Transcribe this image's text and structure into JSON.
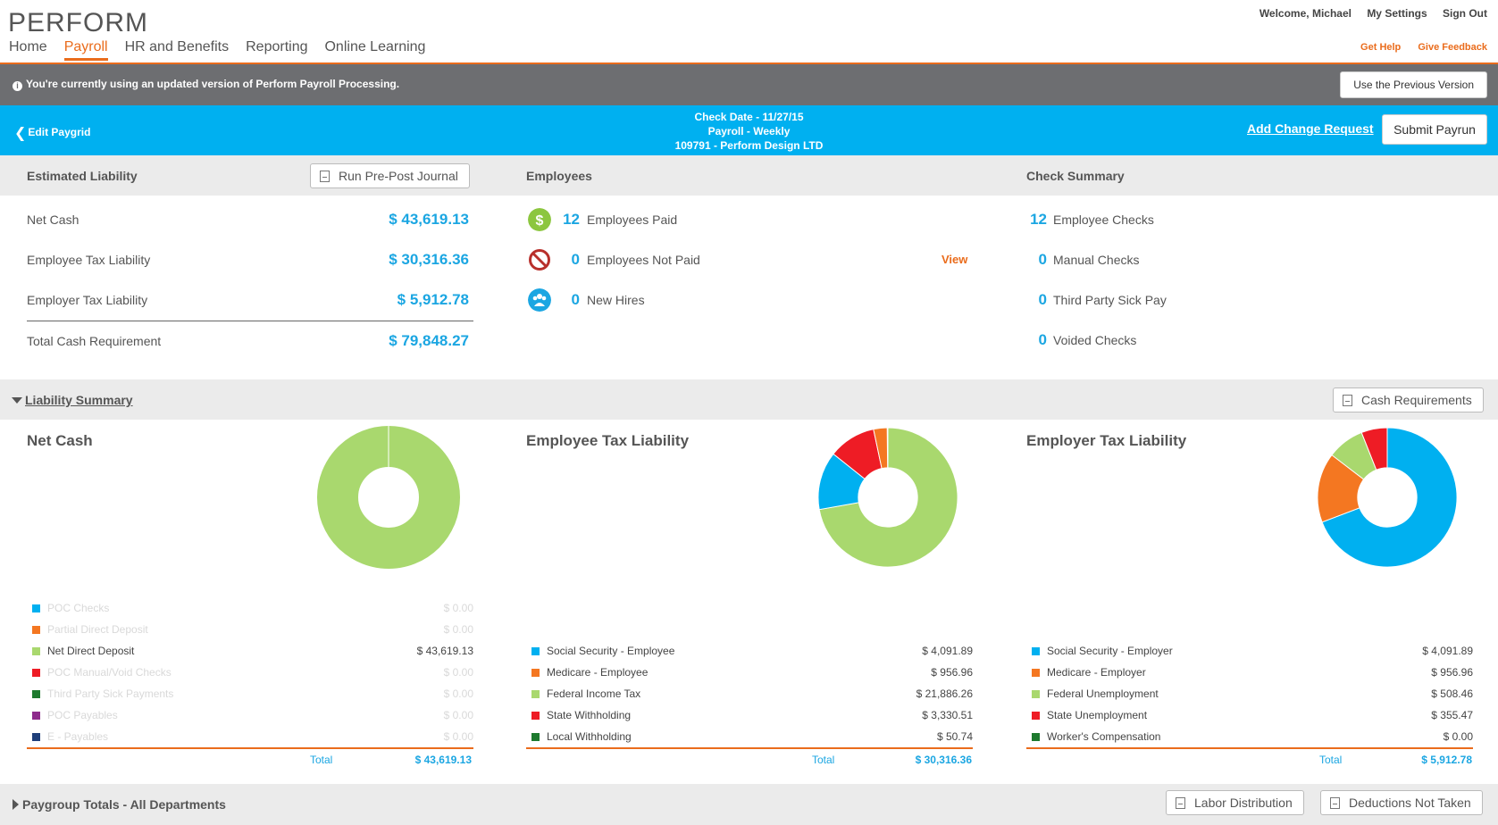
{
  "header": {
    "logo": "PERFORM",
    "welcome": "Welcome, Michael",
    "my_settings": "My Settings",
    "sign_out": "Sign Out",
    "get_help": "Get Help",
    "give_feedback": "Give Feedback",
    "nav": [
      {
        "label": "Home",
        "active": false
      },
      {
        "label": "Payroll",
        "active": true
      },
      {
        "label": "HR and Benefits",
        "active": false
      },
      {
        "label": "Reporting",
        "active": false
      },
      {
        "label": "Online Learning",
        "active": false
      }
    ]
  },
  "notice": {
    "text": "You're currently using an updated version of Perform Payroll Processing.",
    "button": "Use the Previous Version"
  },
  "paygrid_bar": {
    "back_label": "Edit Paygrid",
    "check_date": "Check Date - 11/27/15",
    "payroll": "Payroll - Weekly",
    "company": "109791 - Perform Design LTD",
    "change_request": "Add Change Request",
    "submit": "Submit Payrun"
  },
  "estimated_liability": {
    "title": "Estimated Liability",
    "journal_button": "Run Pre-Post Journal",
    "rows": [
      {
        "label": "Net Cash",
        "value": "$ 43,619.13"
      },
      {
        "label": "Employee Tax Liability",
        "value": "$ 30,316.36"
      },
      {
        "label": "Employer Tax Liability",
        "value": "$ 5,912.78"
      }
    ],
    "total_label": "Total Cash Requirement",
    "total_value": "$ 79,848.27"
  },
  "employees": {
    "title": "Employees",
    "rows": [
      {
        "count": "12",
        "label": "Employees Paid",
        "icon": "dollar-icon"
      },
      {
        "count": "0",
        "label": "Employees Not Paid",
        "icon": "not-allowed-icon"
      },
      {
        "count": "0",
        "label": "New Hires",
        "icon": "people-icon"
      }
    ],
    "view_link": "View"
  },
  "check_summary": {
    "title": "Check Summary",
    "rows": [
      {
        "count": "12",
        "label": "Employee Checks"
      },
      {
        "count": "0",
        "label": "Manual Checks"
      },
      {
        "count": "0",
        "label": "Third Party Sick Pay"
      },
      {
        "count": "0",
        "label": "Voided Checks"
      }
    ]
  },
  "liability_summary": {
    "title": "Liability Summary",
    "cash_button": "Cash Requirements"
  },
  "chart_data": [
    {
      "type": "pie",
      "title": "Net Cash",
      "categories": [
        "POC Checks",
        "Partial Direct Deposit",
        "Net Direct Deposit",
        "POC Manual/Void Checks",
        "Third Party Sick Payments",
        "POC Payables",
        "E - Payables"
      ],
      "values": [
        0,
        0,
        43619.13,
        0,
        0,
        0,
        0
      ],
      "labels": [
        "$ 0.00",
        "$ 0.00",
        "$ 43,619.13",
        "$ 0.00",
        "$ 0.00",
        "$ 0.00",
        "$ 0.00"
      ],
      "colors": [
        "#00b0f0",
        "#f47721",
        "#a9d86e",
        "#ee1c25",
        "#1e7a2e",
        "#8e2b8c",
        "#1f3f7a"
      ],
      "total_label": "Total",
      "total": "$ 43,619.13"
    },
    {
      "type": "pie",
      "title": "Employee Tax Liability",
      "categories": [
        "Social Security - Employee",
        "Medicare - Employee",
        "Federal Income Tax",
        "State Withholding",
        "Local Withholding"
      ],
      "values": [
        4091.89,
        956.96,
        21886.26,
        3330.51,
        50.74
      ],
      "labels": [
        "$ 4,091.89",
        "$ 956.96",
        "$ 21,886.26",
        "$ 3,330.51",
        "$ 50.74"
      ],
      "colors": [
        "#00b0f0",
        "#f47721",
        "#a9d86e",
        "#ee1c25",
        "#1e7a2e"
      ],
      "total_label": "Total",
      "total": "$ 30,316.36"
    },
    {
      "type": "pie",
      "title": "Employer Tax Liability",
      "categories": [
        "Social Security - Employer",
        "Medicare - Employer",
        "Federal Unemployment",
        "State Unemployment",
        "Worker's Compensation"
      ],
      "values": [
        4091.89,
        956.96,
        508.46,
        355.47,
        0
      ],
      "labels": [
        "$ 4,091.89",
        "$ 956.96",
        "$ 508.46",
        "$ 355.47",
        "$ 0.00"
      ],
      "colors": [
        "#00b0f0",
        "#f47721",
        "#a9d86e",
        "#ee1c25",
        "#1e7a2e"
      ],
      "total_label": "Total",
      "total": "$ 5,912.78"
    }
  ],
  "paygroup": {
    "title": "Paygroup Totals - All Departments",
    "labor_button": "Labor Distribution",
    "deductions_button": "Deductions Not Taken"
  }
}
